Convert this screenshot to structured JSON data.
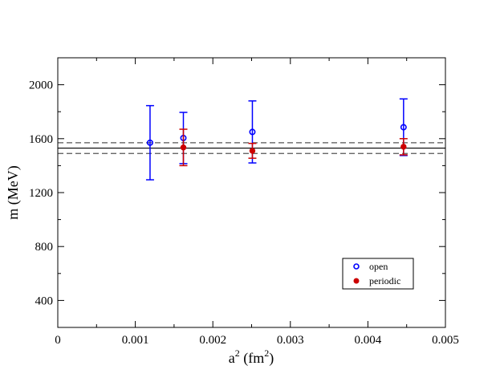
{
  "chart_data": {
    "type": "scatter",
    "xlim": [
      0,
      0.005
    ],
    "ylim": [
      200,
      2200
    ],
    "x_ticks": [
      "0",
      "0.001",
      "0.002",
      "0.003",
      "0.004",
      "0.005"
    ],
    "y_ticks": [
      "400",
      "800",
      "1200",
      "1600",
      "2000"
    ],
    "xlabel": {
      "base": "a",
      "sup1": "2",
      "mid": " (fm",
      "sup2": "2",
      "end": ")"
    },
    "ylabel": "m (MeV)",
    "grid": false,
    "legend_position": "bottom-right",
    "series": [
      {
        "name": "open",
        "color": "#0000ff",
        "marker": "open-circle",
        "points": [
          {
            "x": 0.00119,
            "y": 1570,
            "yerr": 275
          },
          {
            "x": 0.00162,
            "y": 1605,
            "yerr": 190
          },
          {
            "x": 0.00251,
            "y": 1650,
            "yerr": 230
          },
          {
            "x": 0.00446,
            "y": 1685,
            "yerr": 210
          }
        ]
      },
      {
        "name": "periodic",
        "color": "#cc0000",
        "marker": "filled-circle",
        "points": [
          {
            "x": 0.00162,
            "y": 1535,
            "yerr": 135
          },
          {
            "x": 0.00251,
            "y": 1510,
            "yerr": 55
          },
          {
            "x": 0.00446,
            "y": 1540,
            "yerr": 60
          }
        ]
      }
    ],
    "reference_lines": [
      {
        "y": 1530,
        "style": "solid",
        "color": "#000000"
      },
      {
        "y": 1570,
        "style": "dashed",
        "color": "#555555"
      },
      {
        "y": 1490,
        "style": "dashed",
        "color": "#555555"
      }
    ]
  }
}
